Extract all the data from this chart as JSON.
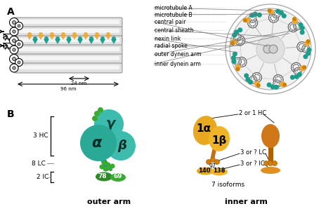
{
  "fig_width": 4.74,
  "fig_height": 3.01,
  "bg_color": "#ffffff",
  "teal_color": "#1a9d8a",
  "teal_light": "#3dbcae",
  "teal_mid": "#2aaa96",
  "orange_color": "#f0a830",
  "orange_dark": "#d08000",
  "orange_arm": "#e08820",
  "green_dark": "#2a7a20",
  "green_med": "#3aaa30",
  "gray_tube": "#c8c8c8",
  "gray_dark": "#888888",
  "panel_a_label": "A",
  "panel_b_label": "B",
  "outer_arm_label": "outer arm",
  "inner_arm_label": "inner arm",
  "annotations_a": [
    "microtubule A",
    "microtubule B",
    "central pair",
    "central sheath",
    "nexin link",
    "radial spoke",
    "outer dynein arm",
    "inner dynein arm"
  ],
  "scale_24": "24 nm",
  "scale_96": "96 nm",
  "hc_label": "3 HC",
  "lc_label": "8 LC",
  "ic_label": "2 IC",
  "greek_gamma": "γ",
  "greek_alpha": "α",
  "greek_beta": "β",
  "inner_labels": [
    "1α",
    "1β",
    "140",
    "138",
    "97"
  ],
  "inner_annot1": "2 or 1 HC",
  "inner_annot2": "3 or ? LC",
  "inner_annot3": "3 or ? IC",
  "inner_annot4": "7 isoforms"
}
